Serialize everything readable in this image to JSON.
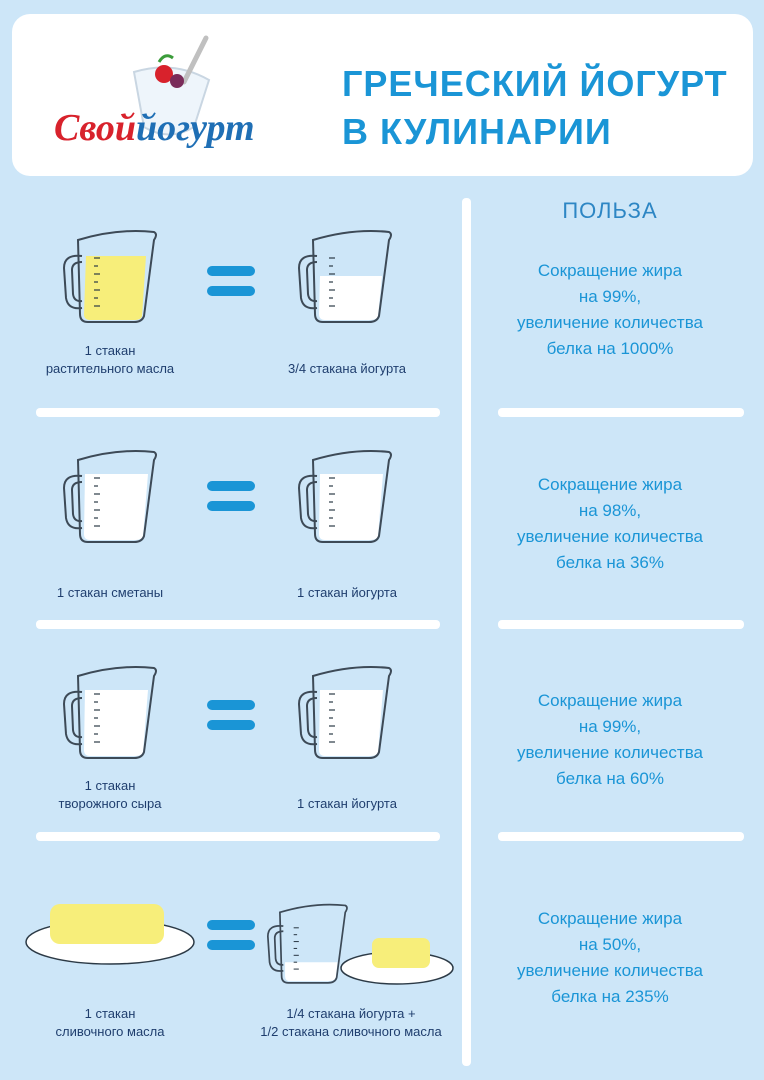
{
  "header": {
    "logo_text": "Свой йогурт",
    "title_line1": "ГРЕЧЕСКИЙ ЙОГУРТ",
    "title_line2": "В КУЛИНАРИИ"
  },
  "benefits_heading": "ПОЛЬЗА",
  "rows": [
    {
      "left_caption": [
        "1 стакан",
        "растительного масла"
      ],
      "right_caption": [
        "3/4 стакана йогурта"
      ],
      "benefit": [
        "Сокращение жира",
        "на 99%,",
        "увеличение количества",
        "белка на 1000%"
      ]
    },
    {
      "left_caption": [
        "1 стакан сметаны"
      ],
      "right_caption": [
        "1 стакан йогурта"
      ],
      "benefit": [
        "Сокращение жира",
        "на 98%,",
        "увеличение количества",
        "белка на 36%"
      ]
    },
    {
      "left_caption": [
        "1 стакан",
        "творожного сыра"
      ],
      "right_caption": [
        "1 стакан йогурта"
      ],
      "benefit": [
        "Сокращение жира",
        "на 99%,",
        "увеличение количества",
        "белка на 60%"
      ]
    },
    {
      "left_caption": [
        "1 стакан",
        "сливочного масла"
      ],
      "right_caption": [
        "1/4 стакана йогурта +",
        "1/2 стакана сливочного масла"
      ],
      "benefit": [
        "Сокращение жира",
        "на 50%,",
        "увеличение количества",
        "белка на 235%"
      ]
    }
  ],
  "colors": {
    "background": "#cde6f8",
    "accent_blue": "#1a95d6",
    "caption_text": "#1f3e6e",
    "oil_yellow": "#f7ee7a",
    "logo_red": "#d8222c"
  },
  "icons": [
    "yogurt-bowl-icon",
    "measuring-cup-icon",
    "plate-icon",
    "butter-block-icon",
    "equals-icon"
  ]
}
